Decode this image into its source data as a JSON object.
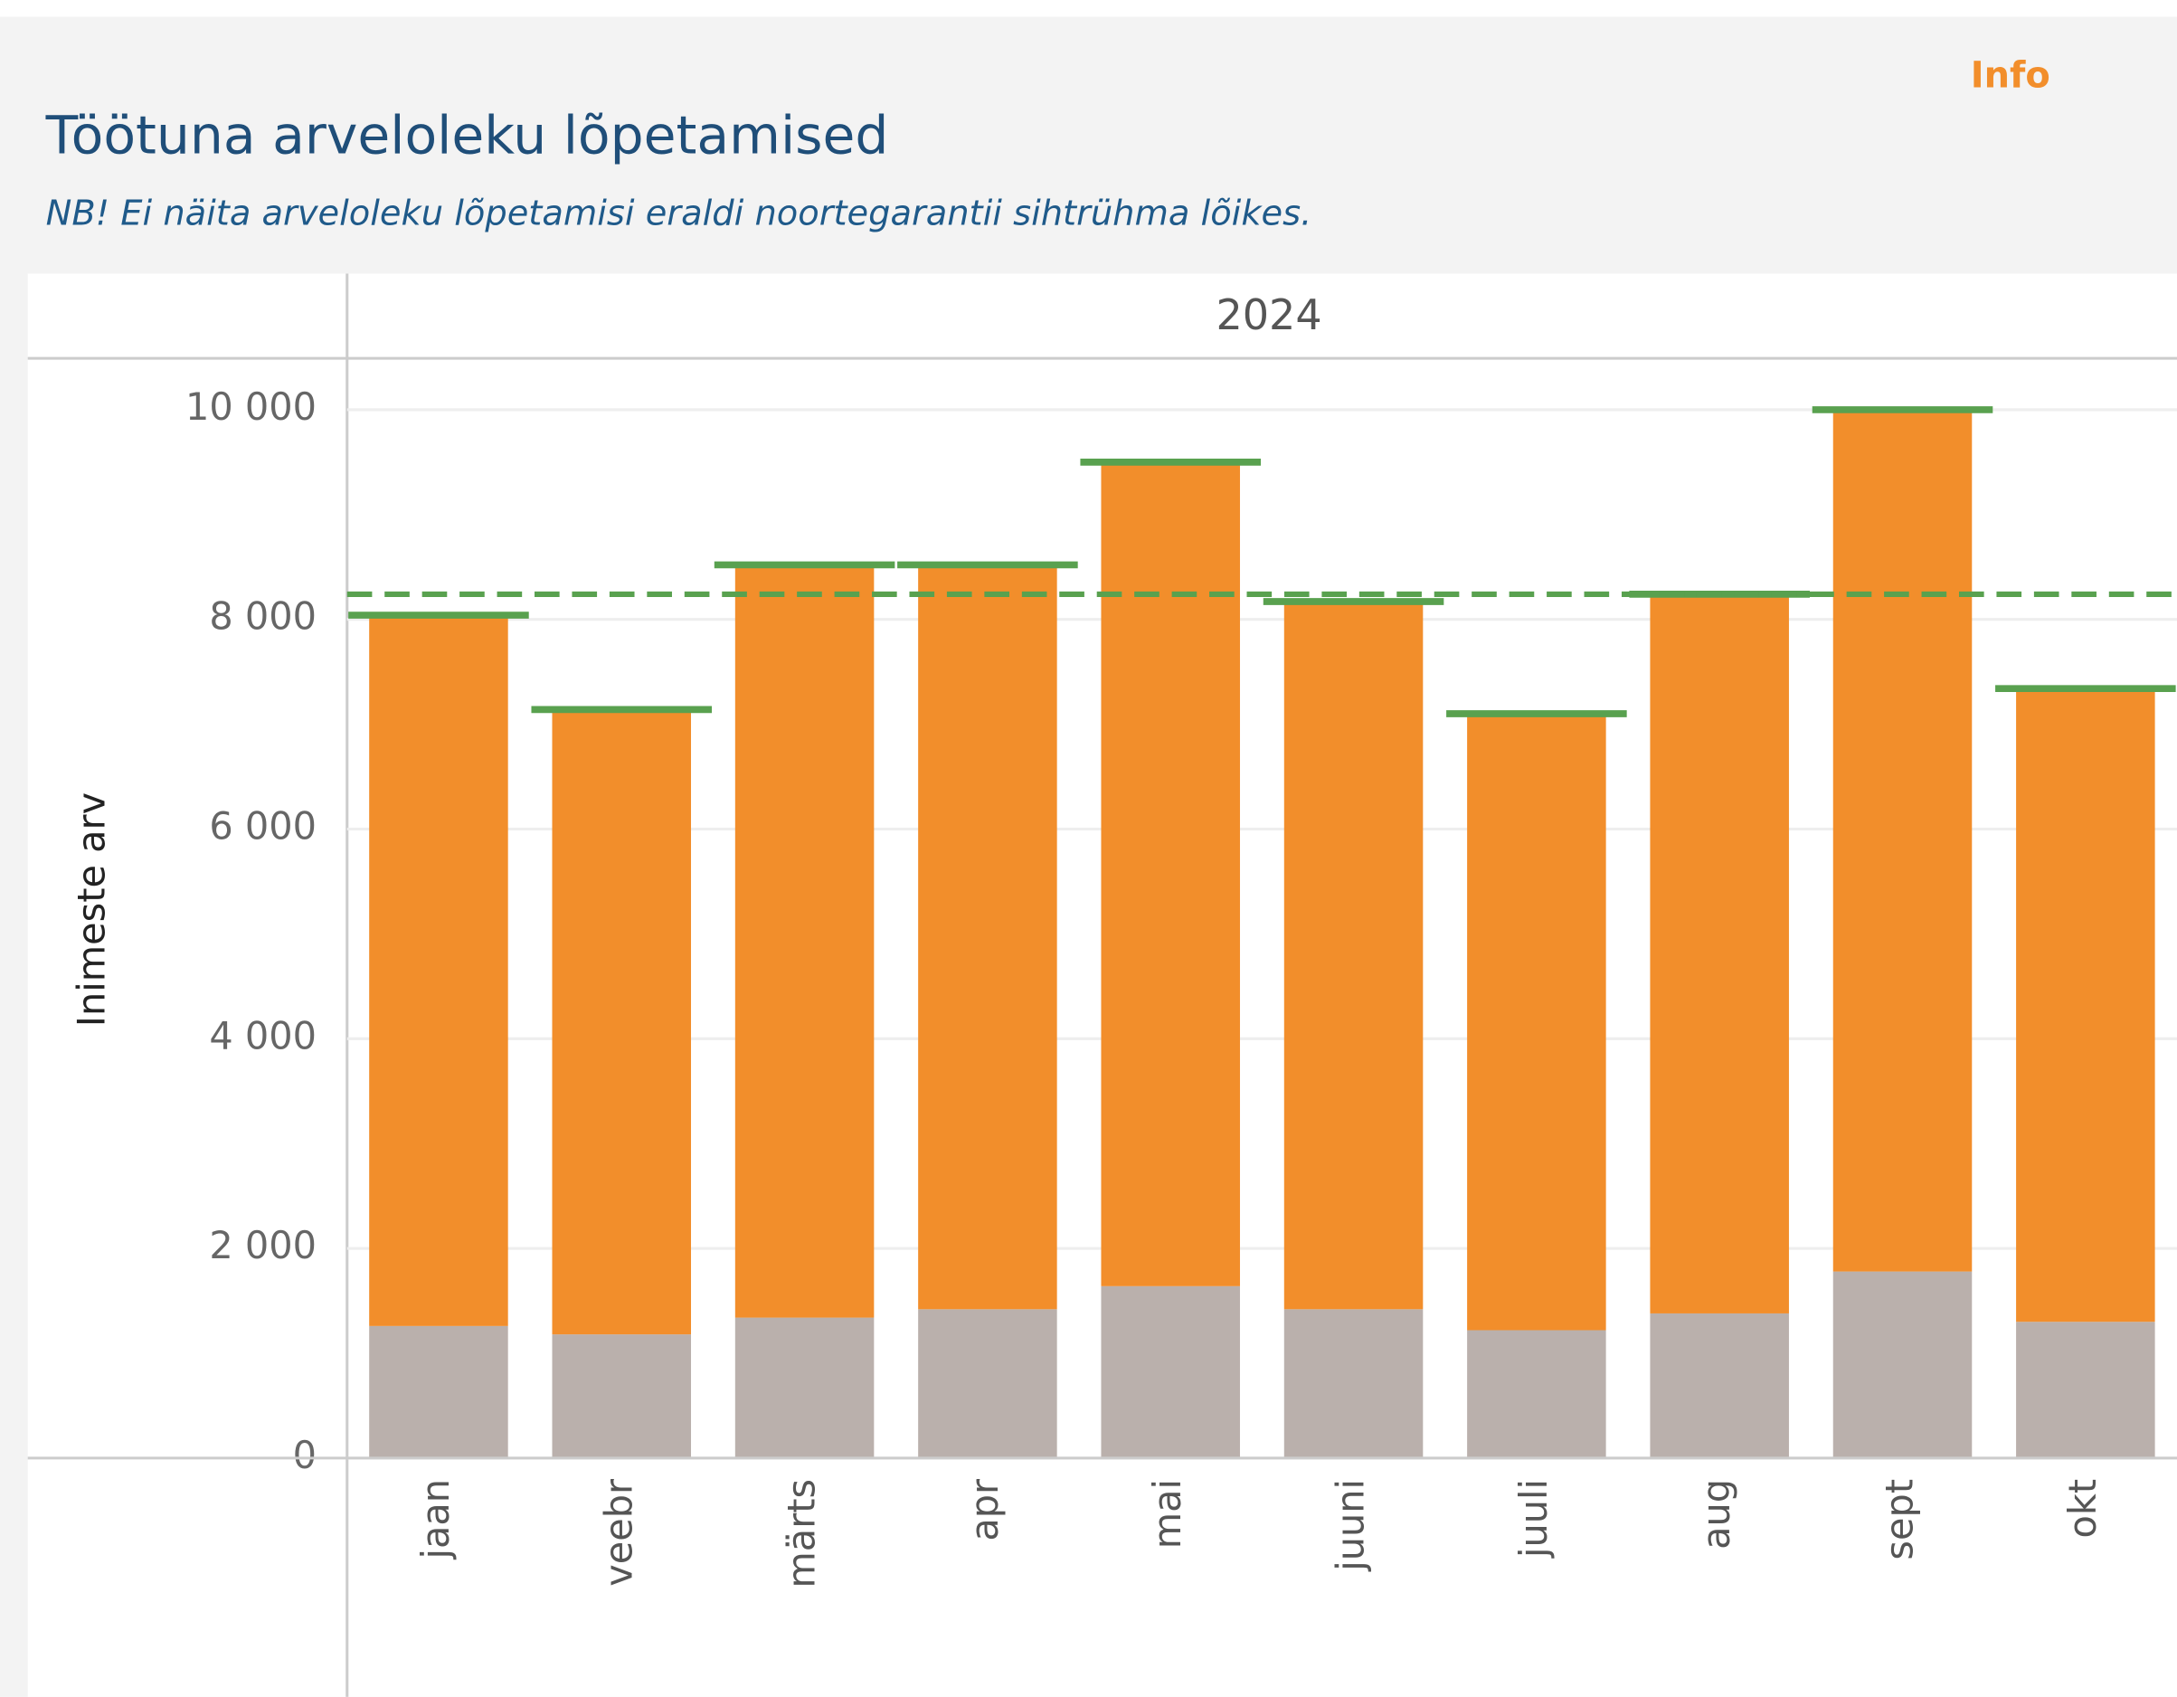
{
  "chart_data": {
    "type": "stacked_bar",
    "info": "Info",
    "title": "Töötuna arveloleku lõpetamised",
    "subtitle": "NB! Ei näita arveloleku lõpetamisi eraldi  noortegarantii sihtrühma lõikes.",
    "column_header": "2024",
    "y_label": "Inimeste arv",
    "categories": [
      "jaan",
      "veebr",
      "märts",
      "apr",
      "mai",
      "juuni",
      "juuli",
      "aug",
      "sept",
      "okt"
    ],
    "series": [
      {
        "color": "#bab0ac",
        "values": [
          1260,
          1180,
          1340,
          1420,
          1640,
          1420,
          1220,
          1380,
          1780,
          1300
        ]
      },
      {
        "color": "#f28e2b",
        "values": [
          6780,
          5960,
          7180,
          7100,
          7860,
          6750,
          5880,
          6860,
          8220,
          6040
        ]
      }
    ],
    "total_marker_color": "#59a14f",
    "reference_line": {
      "value": 8240,
      "color": "#59a14f",
      "style": "dashed"
    },
    "ylim": [
      0,
      10490
    ],
    "yticks": [
      0,
      {
        "value": 2000,
        "label": "2 000"
      },
      {
        "value": 4000,
        "label": "4 000"
      },
      {
        "value": 6000,
        "label": "6 000"
      },
      {
        "value": 8000,
        "label": "8 000"
      },
      {
        "value": 10000,
        "label": "10 000"
      }
    ],
    "grid": true
  }
}
